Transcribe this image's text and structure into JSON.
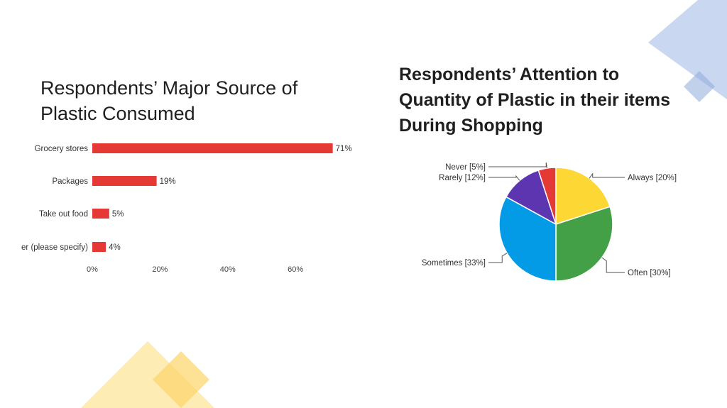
{
  "slide": {
    "left_title_line1": "Respondents’ Major Source of",
    "left_title_line2": "Plastic Consumed",
    "right_title_line1": "Respondents’ Attention to",
    "right_title_line2": "Quantity of Plastic in their items",
    "right_title_line3": "During Shopping"
  },
  "colors": {
    "bar": "#e53935",
    "always": "#fdd835",
    "often": "#43a047",
    "sometimes": "#039be5",
    "rarely": "#5e35b1",
    "never": "#e53935",
    "deco_blue": "#b7c9ec",
    "deco_yellow": "#fde9a6"
  },
  "chart_data": [
    {
      "type": "bar",
      "orientation": "horizontal",
      "categories": [
        "Grocery stores",
        "Packages",
        "Take out food",
        "Other (please specify)"
      ],
      "values": [
        71,
        19,
        5,
        4
      ],
      "value_labels": [
        "71%",
        "19%",
        "5%",
        "4%"
      ],
      "xticks": [
        0,
        20,
        40,
        60
      ],
      "xtick_labels": [
        "0%",
        "20%",
        "40%",
        "60%"
      ],
      "xlim": [
        0,
        75
      ]
    },
    {
      "type": "pie",
      "labels": [
        "Always [20%]",
        "Often [30%]",
        "Sometimes [33%]",
        "Rarely [12%]",
        "Never [5%]"
      ],
      "values": [
        20,
        30,
        33,
        12,
        5
      ],
      "color_keys": [
        "always",
        "often",
        "sometimes",
        "rarely",
        "never"
      ]
    }
  ]
}
